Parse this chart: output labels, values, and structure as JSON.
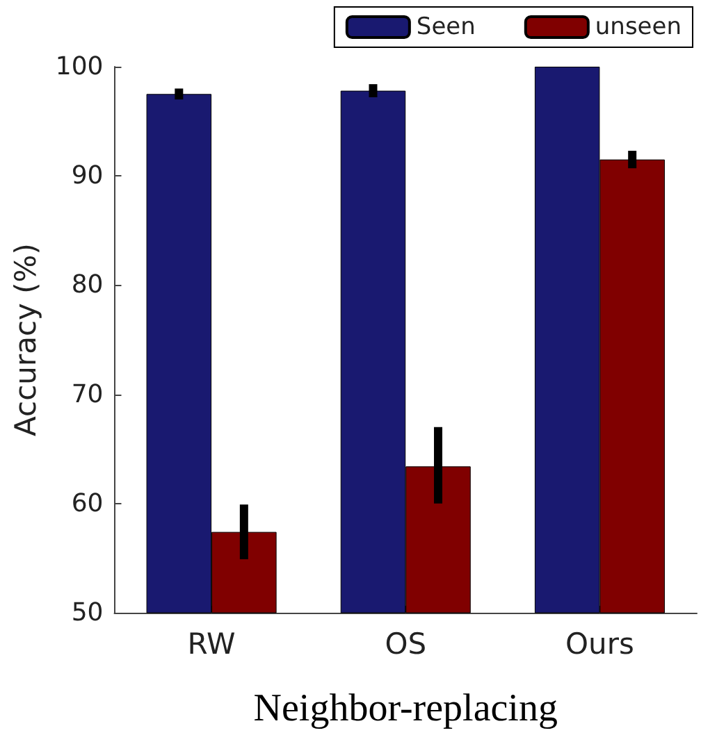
{
  "chart_data": {
    "type": "bar",
    "xlabel": "Neighbor-replacing",
    "ylabel": "Accuracy (%)",
    "categories": [
      "RW",
      "OS",
      "Ours"
    ],
    "series": [
      {
        "name": "Seen",
        "color": "#191970",
        "values": [
          97.5,
          97.8,
          100
        ],
        "errors": [
          0.5,
          0.6,
          null
        ]
      },
      {
        "name": "unseen",
        "color": "#800000",
        "values": [
          57.4,
          63.4,
          91.5
        ],
        "errors": [
          2.5,
          [
            60,
            67
          ],
          0.8
        ]
      }
    ],
    "ylim": [
      50,
      100
    ],
    "yticks": [
      50,
      60,
      70,
      80,
      90,
      100
    ],
    "grid": false,
    "legend": "top right"
  }
}
